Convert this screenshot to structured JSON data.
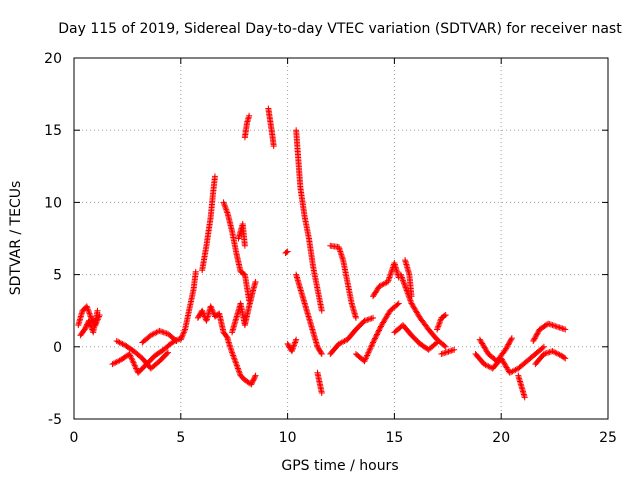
{
  "chart_data": {
    "type": "scatter",
    "title": "Day 115 of 2019, Sidereal Day-to-day VTEC variation (SDTVAR) for receiver nast",
    "xlabel": "GPS time / hours",
    "ylabel": "SDTVAR / TECUs",
    "xlim": [
      0,
      25
    ],
    "ylim": [
      -5,
      20
    ],
    "xticks": [
      0,
      5,
      10,
      15,
      20,
      25
    ],
    "yticks": [
      -5,
      0,
      5,
      10,
      15,
      20
    ],
    "grid": true,
    "marker": "+",
    "color": "#ff0000",
    "tracks": [
      [
        [
          0.2,
          1.5
        ],
        [
          0.4,
          2.5
        ],
        [
          0.6,
          2.8
        ],
        [
          0.8,
          2.0
        ],
        [
          1.0,
          1.5
        ],
        [
          1.2,
          2.2
        ]
      ],
      [
        [
          0.3,
          0.8
        ],
        [
          0.5,
          1.2
        ],
        [
          0.7,
          1.8
        ],
        [
          0.9,
          1.0
        ],
        [
          1.1,
          2.5
        ]
      ],
      [
        [
          1.8,
          -1.2
        ],
        [
          2.2,
          -0.9
        ],
        [
          2.6,
          -0.5
        ],
        [
          3.0,
          -1.8
        ],
        [
          3.4,
          -1.2
        ],
        [
          3.8,
          -0.6
        ],
        [
          4.2,
          -0.2
        ],
        [
          4.6,
          0.3
        ],
        [
          5.0,
          0.6
        ]
      ],
      [
        [
          2.0,
          0.4
        ],
        [
          2.4,
          0.1
        ],
        [
          2.8,
          -0.3
        ],
        [
          3.2,
          -0.8
        ],
        [
          3.6,
          -1.5
        ],
        [
          4.0,
          -1.0
        ],
        [
          4.4,
          -0.4
        ]
      ],
      [
        [
          3.2,
          0.3
        ],
        [
          3.6,
          0.8
        ],
        [
          4.0,
          1.1
        ],
        [
          4.4,
          0.9
        ],
        [
          4.8,
          0.4
        ]
      ],
      [
        [
          5.0,
          0.5
        ],
        [
          5.2,
          1.2
        ],
        [
          5.4,
          2.6
        ],
        [
          5.6,
          4.0
        ],
        [
          5.7,
          5.2
        ]
      ],
      [
        [
          5.8,
          2.0
        ],
        [
          6.0,
          2.5
        ],
        [
          6.2,
          1.8
        ],
        [
          6.4,
          2.8
        ],
        [
          6.6,
          2.1
        ],
        [
          6.8,
          2.3
        ],
        [
          7.0,
          1.0
        ],
        [
          7.2,
          0.6
        ]
      ],
      [
        [
          6.0,
          5.3
        ],
        [
          6.2,
          7.0
        ],
        [
          6.4,
          9.0
        ],
        [
          6.5,
          10.5
        ],
        [
          6.6,
          11.8
        ]
      ],
      [
        [
          7.0,
          10.0
        ],
        [
          7.2,
          9.2
        ],
        [
          7.4,
          8.0
        ],
        [
          7.6,
          6.5
        ],
        [
          7.8,
          5.2
        ],
        [
          8.0,
          5.0
        ],
        [
          8.2,
          3.2
        ]
      ],
      [
        [
          7.2,
          0.5
        ],
        [
          7.4,
          -0.4
        ],
        [
          7.6,
          -1.2
        ],
        [
          7.8,
          -2.0
        ],
        [
          8.0,
          -2.3
        ],
        [
          8.3,
          -2.6
        ],
        [
          8.5,
          -2.0
        ]
      ],
      [
        [
          7.4,
          1.0
        ],
        [
          7.6,
          2.0
        ],
        [
          7.8,
          3.0
        ],
        [
          8.0,
          1.5
        ],
        [
          8.2,
          2.8
        ],
        [
          8.4,
          4.0
        ],
        [
          8.5,
          4.5
        ]
      ],
      [
        [
          7.7,
          7.5
        ],
        [
          7.9,
          8.5
        ],
        [
          8.0,
          7.0
        ]
      ],
      [
        [
          8.0,
          14.5
        ],
        [
          8.1,
          15.5
        ],
        [
          8.2,
          16.0
        ]
      ],
      [
        [
          9.1,
          16.5
        ],
        [
          9.2,
          15.5
        ],
        [
          9.3,
          14.5
        ],
        [
          9.35,
          13.9
        ]
      ],
      [
        [
          9.9,
          6.5
        ],
        [
          10.0,
          6.6
        ]
      ],
      [
        [
          10.0,
          0.2
        ],
        [
          10.2,
          -0.3
        ],
        [
          10.4,
          0.5
        ]
      ],
      [
        [
          10.4,
          15.0
        ],
        [
          10.5,
          13.0
        ],
        [
          10.6,
          11.0
        ],
        [
          10.8,
          9.0
        ],
        [
          11.0,
          7.5
        ],
        [
          11.2,
          5.5
        ],
        [
          11.4,
          4.0
        ],
        [
          11.6,
          2.5
        ]
      ],
      [
        [
          10.4,
          5.0
        ],
        [
          10.6,
          4.0
        ],
        [
          10.8,
          3.0
        ],
        [
          11.0,
          2.0
        ],
        [
          11.2,
          1.0
        ],
        [
          11.4,
          0.0
        ],
        [
          11.6,
          -0.5
        ]
      ],
      [
        [
          11.4,
          -1.8
        ],
        [
          11.5,
          -2.5
        ],
        [
          11.6,
          -3.2
        ]
      ],
      [
        [
          12.0,
          -0.5
        ],
        [
          12.4,
          0.2
        ],
        [
          12.8,
          0.5
        ],
        [
          13.2,
          1.2
        ],
        [
          13.6,
          1.8
        ],
        [
          14.0,
          2.0
        ]
      ],
      [
        [
          12.0,
          7.0
        ],
        [
          12.4,
          6.9
        ],
        [
          12.6,
          6.0
        ],
        [
          12.8,
          4.5
        ],
        [
          13.0,
          3.0
        ],
        [
          13.2,
          2.0
        ]
      ],
      [
        [
          13.2,
          -0.5
        ],
        [
          13.6,
          -1.0
        ],
        [
          14.0,
          0.3
        ],
        [
          14.4,
          1.5
        ],
        [
          14.8,
          2.5
        ],
        [
          15.2,
          3.0
        ]
      ],
      [
        [
          14.0,
          3.5
        ],
        [
          14.3,
          4.2
        ],
        [
          14.7,
          4.5
        ],
        [
          15.0,
          5.8
        ],
        [
          15.2,
          4.8
        ]
      ],
      [
        [
          15.3,
          5.0
        ],
        [
          15.5,
          4.2
        ],
        [
          15.8,
          3.0
        ],
        [
          16.2,
          2.0
        ],
        [
          16.6,
          1.2
        ],
        [
          17.0,
          0.5
        ],
        [
          17.4,
          0.0
        ]
      ],
      [
        [
          15.0,
          1.0
        ],
        [
          15.4,
          1.5
        ],
        [
          15.8,
          0.8
        ],
        [
          16.2,
          0.2
        ],
        [
          16.6,
          -0.2
        ],
        [
          17.0,
          0.3
        ]
      ],
      [
        [
          15.5,
          6.0
        ],
        [
          15.7,
          5.0
        ],
        [
          15.8,
          3.5
        ]
      ],
      [
        [
          17.0,
          1.2
        ],
        [
          17.2,
          2.0
        ],
        [
          17.4,
          2.2
        ]
      ],
      [
        [
          17.2,
          -0.5
        ],
        [
          17.8,
          -0.2
        ]
      ],
      [
        [
          18.8,
          -0.5
        ],
        [
          19.2,
          -1.2
        ],
        [
          19.6,
          -1.5
        ],
        [
          20.0,
          -0.8
        ],
        [
          20.4,
          -1.8
        ],
        [
          20.8,
          -1.5
        ],
        [
          21.2,
          -1.0
        ],
        [
          21.6,
          -0.5
        ],
        [
          22.0,
          0.0
        ]
      ],
      [
        [
          19.0,
          0.5
        ],
        [
          19.4,
          -0.5
        ],
        [
          19.8,
          -1.0
        ],
        [
          20.2,
          -0.2
        ],
        [
          20.5,
          0.6
        ]
      ],
      [
        [
          20.8,
          -2.0
        ],
        [
          21.0,
          -3.0
        ],
        [
          21.1,
          -3.5
        ]
      ],
      [
        [
          21.5,
          0.4
        ],
        [
          21.8,
          1.2
        ],
        [
          22.2,
          1.6
        ],
        [
          22.6,
          1.4
        ],
        [
          23.0,
          1.2
        ]
      ],
      [
        [
          21.6,
          -1.2
        ],
        [
          22.0,
          -0.5
        ],
        [
          22.4,
          -0.3
        ],
        [
          22.8,
          -0.6
        ],
        [
          23.0,
          -0.8
        ]
      ]
    ]
  }
}
